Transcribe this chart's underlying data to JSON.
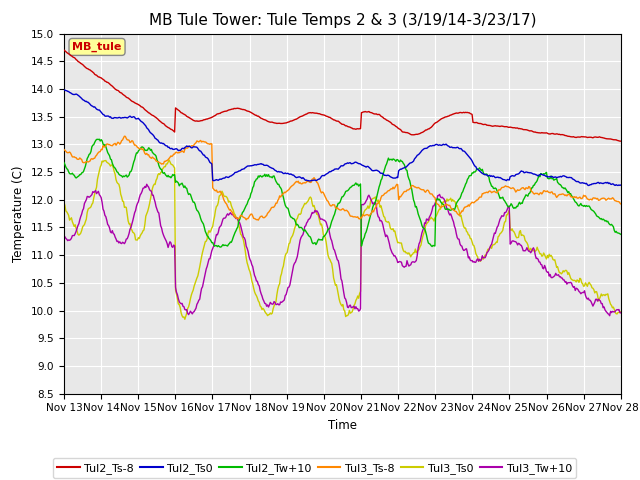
{
  "title": "MB Tule Tower: Tule Temps 2 & 3 (3/19/14-3/23/17)",
  "xlabel": "Time",
  "ylabel": "Temperature (C)",
  "ylim": [
    8.5,
    15.0
  ],
  "yticks": [
    8.5,
    9.0,
    9.5,
    10.0,
    10.5,
    11.0,
    11.5,
    12.0,
    12.5,
    13.0,
    13.5,
    14.0,
    14.5,
    15.0
  ],
  "legend_label_box": "MB_tule",
  "series": {
    "Tul2_Ts-8": {
      "color": "#cc0000",
      "linewidth": 1.0
    },
    "Tul2_Ts0": {
      "color": "#0000cc",
      "linewidth": 1.0
    },
    "Tul2_Tw+10": {
      "color": "#00bb00",
      "linewidth": 1.0
    },
    "Tul3_Ts-8": {
      "color": "#ff8800",
      "linewidth": 1.0
    },
    "Tul3_Ts0": {
      "color": "#cccc00",
      "linewidth": 1.0
    },
    "Tul3_Tw+10": {
      "color": "#aa00aa",
      "linewidth": 1.0
    }
  },
  "xtick_labels": [
    "Nov 13",
    "Nov 14",
    "Nov 15",
    "Nov 16",
    "Nov 17",
    "Nov 18",
    "Nov 19",
    "Nov 20",
    "Nov 21",
    "Nov 22",
    "Nov 23",
    "Nov 24",
    "Nov 25",
    "Nov 26",
    "Nov 27",
    "Nov 28"
  ],
  "background_color": "#e8e8e8",
  "grid_color": "#ffffff",
  "title_fontsize": 11,
  "tick_fontsize": 7.5,
  "legend_fontsize": 8
}
